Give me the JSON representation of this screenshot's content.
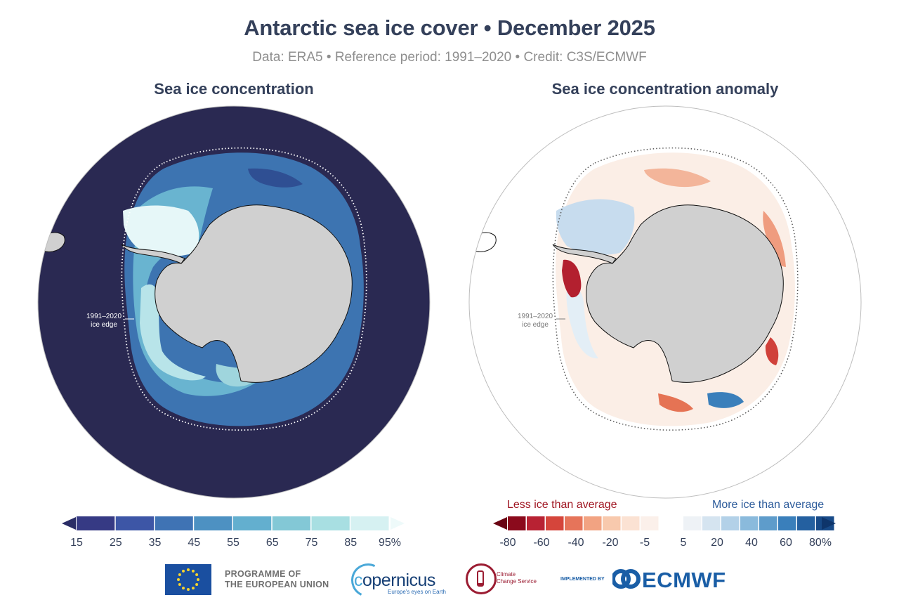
{
  "header": {
    "title": "Antarctic sea ice cover • December 2025",
    "subtitle": "Data: ERA5 • Reference period: 1991–2020 • Credit: C3S/ECMWF"
  },
  "panels": {
    "left": {
      "title": "Sea ice concentration",
      "edge_label_line1": "1991–2020",
      "edge_label_line2": "ice edge",
      "colorbar": {
        "ticks": [
          "15",
          "25",
          "35",
          "45",
          "55",
          "65",
          "75",
          "85",
          "95%"
        ],
        "colors": [
          "#363a84",
          "#3d56a6",
          "#3f73b4",
          "#4d91c2",
          "#63afcf",
          "#83c8d6",
          "#a8dfe2",
          "#d6f1f2"
        ],
        "extend_low_color": "#2a2d66",
        "extend_high_color": "#eefafa"
      }
    },
    "right": {
      "title": "Sea ice concentration anomaly",
      "edge_label_line1": "1991–2020",
      "edge_label_line2": "ice edge",
      "less_label": "Less ice than average",
      "more_label": "More ice than average",
      "colorbar": {
        "neg_ticks": [
          "-80",
          "-60",
          "-40",
          "-20",
          "-5"
        ],
        "pos_ticks": [
          "5",
          "20",
          "40",
          "60",
          "80%"
        ],
        "neg_colors": [
          "#8b0a1c",
          "#b82233",
          "#d5453b",
          "#e6745a",
          "#f2a382",
          "#f8c9ad",
          "#fbe2d3",
          "#fbf0ea"
        ],
        "pos_colors": [
          "#eef2f6",
          "#d5e4f0",
          "#b3d1e8",
          "#8abadc",
          "#5e9ccb",
          "#3a7fbb",
          "#2460a0",
          "#174a88"
        ],
        "extend_low_color": "#6a0413",
        "extend_high_color": "#0e356b"
      }
    }
  },
  "map_colors": {
    "ocean": "#2a2952",
    "land": "#d0d0d0",
    "coast": "#111111"
  },
  "footer": {
    "eu_line1": "PROGRAMME OF",
    "eu_line2": "THE EUROPEAN UNION",
    "copernicus": "opernicus",
    "copernicus_tagline": "Europe's eyes on Earth",
    "c3s_line1": "Climate",
    "c3s_line2": "Change Service",
    "implemented_by": "IMPLEMENTED BY",
    "ecmwf": "ECMWF"
  }
}
